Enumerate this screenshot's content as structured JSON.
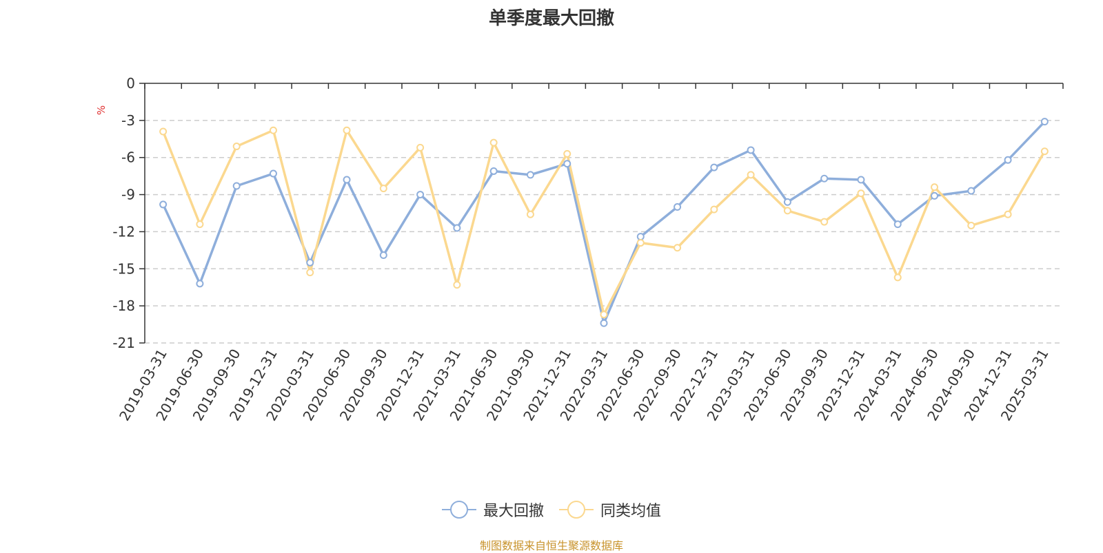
{
  "chart_data": {
    "type": "line",
    "title": "单季度最大回撤",
    "ylabel": "%",
    "ylim": [
      -21,
      0
    ],
    "yticks": [
      0,
      -3,
      -6,
      -9,
      -12,
      -15,
      -18,
      -21
    ],
    "grid": true,
    "legend_position": "bottom",
    "categories": [
      "2019-03-31",
      "2019-06-30",
      "2019-09-30",
      "2019-12-31",
      "2020-03-31",
      "2020-06-30",
      "2020-09-30",
      "2020-12-31",
      "2021-03-31",
      "2021-06-30",
      "2021-09-30",
      "2021-12-31",
      "2022-03-31",
      "2022-06-30",
      "2022-09-30",
      "2022-12-31",
      "2023-03-31",
      "2023-06-30",
      "2023-09-30",
      "2023-12-31",
      "2024-03-31",
      "2024-06-30",
      "2024-09-30",
      "2024-12-31",
      "2025-03-31"
    ],
    "series": [
      {
        "name": "最大回撤",
        "color": "#8eaedb",
        "values": [
          -9.8,
          -16.2,
          -8.3,
          -7.3,
          -14.5,
          -7.8,
          -13.9,
          -9.0,
          -11.7,
          -7.1,
          -7.4,
          -6.5,
          -19.4,
          -12.4,
          -10.0,
          -6.8,
          -5.4,
          -9.6,
          -7.7,
          -7.8,
          -11.4,
          -9.1,
          -8.7,
          -6.2,
          -3.1
        ]
      },
      {
        "name": "同类均值",
        "color": "#fbd88f",
        "values": [
          -3.9,
          -11.4,
          -5.1,
          -3.8,
          -15.3,
          -3.8,
          -8.5,
          -5.2,
          -16.3,
          -4.8,
          -10.6,
          -5.7,
          -18.7,
          -12.9,
          -13.3,
          -10.2,
          -7.4,
          -10.3,
          -11.2,
          -8.9,
          -15.7,
          -8.4,
          -11.5,
          -10.6,
          -5.5
        ]
      }
    ]
  },
  "source_note": "制图数据来自恒生聚源数据库"
}
